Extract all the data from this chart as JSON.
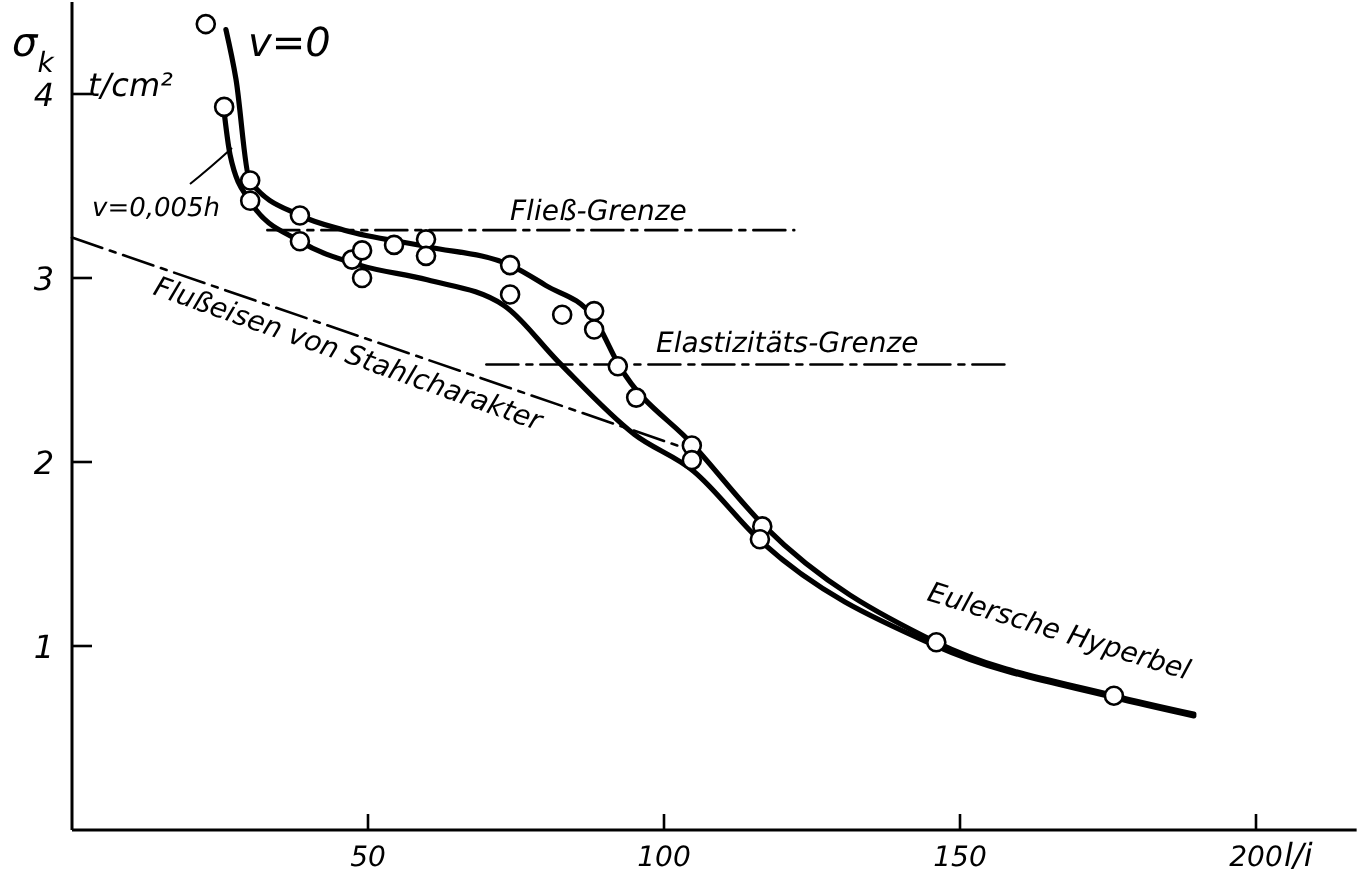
{
  "chart_data": {
    "type": "line",
    "ylabel": "σ$_{k}$",
    "xlabel": "l/i",
    "xlim": [
      0,
      217
    ],
    "ylim": [
      0,
      4.5
    ],
    "xticks": [
      50,
      100,
      150,
      200
    ],
    "yticks": [
      1,
      2,
      3,
      4
    ],
    "grid": false,
    "annotations": [
      "t/cm²",
      "Eulersche Hyperbel"
    ],
    "series": [
      {
        "name": "v=0",
        "color": "#000000",
        "line_style": "solid",
        "x": [
          26,
          27.7,
          30,
          38.5,
          46,
          60,
          74,
          80,
          88,
          92.5,
          105,
          117,
          146,
          176,
          189.5
        ],
        "values": [
          4.35,
          4.08,
          3.53,
          3.34,
          3.26,
          3.17,
          3.07,
          2.96,
          2.79,
          2.52,
          2.09,
          1.65,
          1.02,
          0.73,
          0.63
        ]
      },
      {
        "name": "v=0,005h",
        "color": "#000000",
        "line_style": "solid",
        "x": [
          25.6,
          26.7,
          30,
          38.5,
          48.6,
          60,
          73,
          82,
          95,
          105,
          116,
          146,
          176,
          189.5
        ],
        "values": [
          3.93,
          3.67,
          3.42,
          3.2,
          3.07,
          2.99,
          2.85,
          2.55,
          2.15,
          1.95,
          1.58,
          1.0,
          0.72,
          0.62
        ]
      },
      {
        "name": "Flußeisen von Stahlcharakter",
        "color": "#000000",
        "line_style": "dashed",
        "x": [
          0,
          104
        ],
        "values": [
          3.22,
          2.07
        ]
      },
      {
        "name": "Fließ-Grenze",
        "color": "#000000",
        "line_style": "dashed",
        "x": [
          33,
          122
        ],
        "values": [
          3.26,
          3.26
        ]
      },
      {
        "name": "Elastizitäts-Grenze",
        "color": "#000000",
        "line_style": "dashed",
        "x": [
          70,
          158
        ],
        "values": [
          2.53,
          2.53
        ]
      },
      {
        "type": "scatter",
        "color": "#000000",
        "marker": "circle",
        "x": [
          22.6,
          25.7,
          30.1,
          30.1,
          38.5,
          38.5,
          47.3,
          49,
          49,
          54.4,
          59.8,
          59.8,
          74,
          74,
          82.8,
          88.2,
          88.2,
          92.2,
          95.3,
          104.7,
          104.7,
          116.6,
          116.2,
          146,
          176
        ],
        "values": [
          4.38,
          3.93,
          3.53,
          3.42,
          3.34,
          3.2,
          3.1,
          3.15,
          3.0,
          3.18,
          3.21,
          3.12,
          3.07,
          2.91,
          2.8,
          2.82,
          2.72,
          2.52,
          2.35,
          2.09,
          2.01,
          1.65,
          1.58,
          1.02,
          0.73
        ]
      }
    ]
  }
}
